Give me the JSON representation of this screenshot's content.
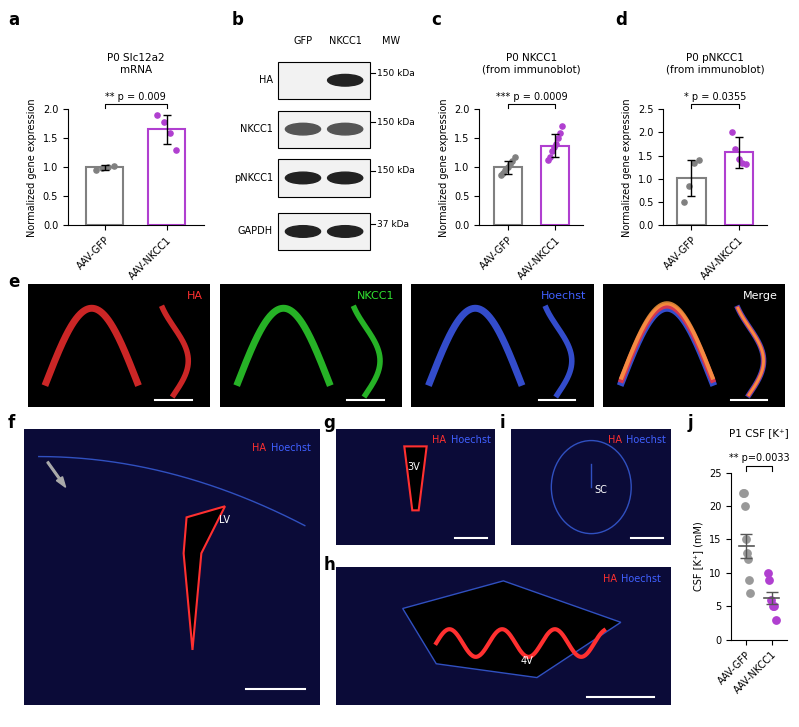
{
  "chart_data": [
    {
      "panel": "a",
      "type": "bar",
      "title": "P0 Slc12a2\nmRNA",
      "y_label": "Normalized gene expression",
      "categories": [
        "AAV-GFP",
        "AAV-NKCC1"
      ],
      "values": [
        1.0,
        1.65
      ],
      "errors": [
        0.04,
        0.25
      ],
      "points": [
        [
          0.96,
          0.99,
          1.01,
          1.02
        ],
        [
          1.9,
          1.77,
          1.58,
          1.3
        ]
      ],
      "colors": [
        "#808080",
        "#b03fd0"
      ],
      "annotation": "** p = 0.009",
      "ylim": [
        0,
        2.0
      ],
      "yticks": [
        {
          "value": 0,
          "label": "0.0"
        },
        0.5,
        {
          "value": 1,
          "label": "1.0"
        },
        1.5,
        {
          "value": 2,
          "label": "2.0"
        }
      ]
    },
    {
      "panel": "c",
      "type": "bar",
      "title": "P0 NKCC1\n(from immunoblot)",
      "y_label": "Normalized gene expression",
      "categories": [
        "AAV-GFP",
        "AAV-NKCC1"
      ],
      "values": [
        1.0,
        1.37
      ],
      "errors": [
        0.11,
        0.2
      ],
      "points": [
        [
          0.86,
          0.9,
          0.95,
          1.0,
          1.05,
          1.1,
          1.18
        ],
        [
          1.12,
          1.18,
          1.28,
          1.35,
          1.4,
          1.5,
          1.58,
          1.7
        ]
      ],
      "colors": [
        "#808080",
        "#b03fd0"
      ],
      "annotation": "*** p = 0.0009",
      "ylim": [
        0,
        2.0
      ],
      "yticks": [
        {
          "value": 0,
          "label": "0.0"
        },
        0.5,
        {
          "value": 1,
          "label": "1.0"
        },
        1.5,
        {
          "value": 2,
          "label": "2.0"
        }
      ]
    },
    {
      "panel": "d",
      "type": "bar",
      "title": "P0 pNKCC1\n(from immunoblot)",
      "y_label": "Normalized gene expression",
      "categories": [
        "AAV-GFP",
        "AAV-NKCC1"
      ],
      "values": [
        1.02,
        1.57
      ],
      "errors": [
        0.38,
        0.33
      ],
      "points": [
        [
          0.5,
          0.85,
          1.33,
          1.4
        ],
        [
          2.0,
          1.65,
          1.42,
          1.35,
          1.32
        ]
      ],
      "colors": [
        "#808080",
        "#b03fd0"
      ],
      "annotation": "* p = 0.0355",
      "ylim": [
        0,
        2.5
      ],
      "yticks": [
        {
          "value": 0,
          "label": "0.0"
        },
        0.5,
        {
          "value": 1,
          "label": "1.0"
        },
        1.5,
        {
          "value": 2,
          "label": "2.0"
        },
        2.5
      ]
    },
    {
      "panel": "j",
      "type": "scatter",
      "title": "P1 CSF [K⁺]",
      "y_label": "CSF [K⁺] (mM)",
      "categories": [
        "AAV-GFP",
        "AAV-NKCC1"
      ],
      "values": [
        14.0,
        6.3
      ],
      "errors": [
        1.8,
        0.9
      ],
      "points": [
        [
          22,
          22,
          20,
          15,
          13,
          12,
          9,
          7
        ],
        [
          10,
          9,
          6,
          5,
          5,
          3
        ]
      ],
      "colors": [
        "#999999",
        "#b03fd0"
      ],
      "annotation": "** p=0.0033",
      "ylim": [
        0,
        25
      ],
      "yticks": [
        0,
        5,
        10,
        15,
        20,
        25
      ]
    }
  ],
  "blot": {
    "panel": "b",
    "lanes": [
      "GFP",
      "NKCC1"
    ],
    "mw_header": "MW",
    "rows": [
      {
        "label": "HA",
        "mw": "150 kDa"
      },
      {
        "label": "NKCC1",
        "mw": "150 kDa"
      },
      {
        "label": "pNKCC1",
        "mw": "150 kDa"
      },
      {
        "label": "GAPDH",
        "mw": "37 kDa"
      }
    ]
  },
  "stain_panel": {
    "panel": "e",
    "images": [
      {
        "label": "HA",
        "color": "#ff3030"
      },
      {
        "label": "NKCC1",
        "color": "#30e030"
      },
      {
        "label": "Hoechst",
        "color": "#4060ff"
      },
      {
        "label": "Merge",
        "color": "#ffffff"
      }
    ]
  },
  "sections": [
    {
      "panel": "f",
      "region": "LV"
    },
    {
      "panel": "g",
      "region": "3V"
    },
    {
      "panel": "i",
      "region": "SC"
    },
    {
      "panel": "h",
      "region": "4V"
    }
  ],
  "section_labels": [
    {
      "label": "HA",
      "color": "#ff3030"
    },
    {
      "label": "Hoechst",
      "color": "#4060ff"
    }
  ]
}
